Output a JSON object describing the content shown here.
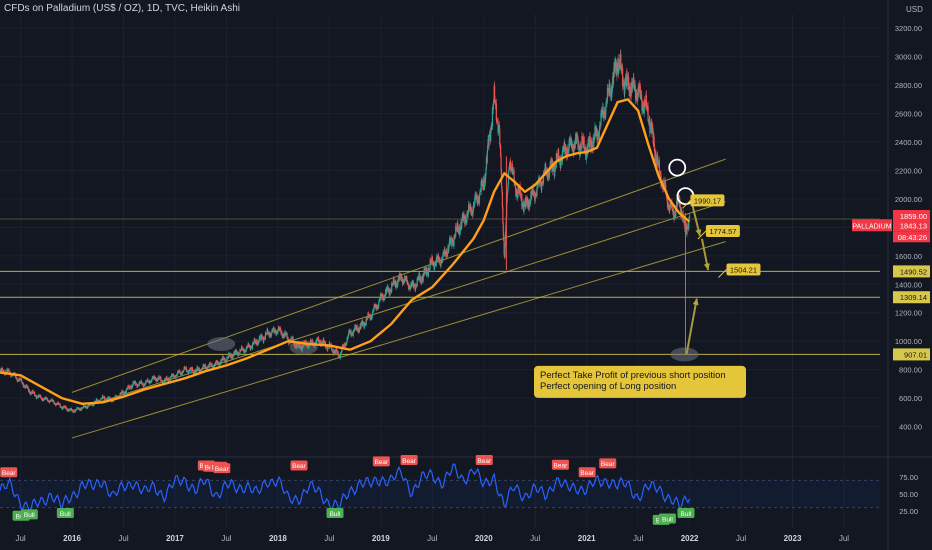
{
  "header": {
    "title": "CFDs on Palladium (US$ / OZ), 1D, TVC, Heikin Ashi",
    "currency": "USD"
  },
  "colors": {
    "background": "#131722",
    "candle_up": "#26a69a",
    "candle_down": "#ef5350",
    "ma_line": "#ff9f1a",
    "channel": "#c8b43c",
    "hline": "#d8c84a",
    "rsi_line": "#2962ff",
    "annotation_bg": "#e5c53a",
    "price_tag": "#f23645"
  },
  "chart_data": [
    {
      "type": "line",
      "name": "price-chart",
      "title": "CFDs on Palladium (US$ / OZ), 1D, TVC, Heikin Ashi",
      "xlabel": "",
      "ylabel": "USD",
      "ylim": [
        200,
        3300
      ],
      "x_range": [
        2015.3,
        2023.85
      ],
      "x_ticks": [
        {
          "x": 2015.5,
          "label": "Jul"
        },
        {
          "x": 2016.0,
          "label": "2016"
        },
        {
          "x": 2016.5,
          "label": "Jul"
        },
        {
          "x": 2017.0,
          "label": "2017"
        },
        {
          "x": 2017.5,
          "label": "Jul"
        },
        {
          "x": 2018.0,
          "label": "2018"
        },
        {
          "x": 2018.5,
          "label": "Jul"
        },
        {
          "x": 2019.0,
          "label": "2019"
        },
        {
          "x": 2019.5,
          "label": "Jul"
        },
        {
          "x": 2020.0,
          "label": "2020"
        },
        {
          "x": 2020.5,
          "label": "Jul"
        },
        {
          "x": 2021.0,
          "label": "2021"
        },
        {
          "x": 2021.5,
          "label": "Jul"
        },
        {
          "x": 2022.0,
          "label": "2022"
        },
        {
          "x": 2022.5,
          "label": "Jul"
        },
        {
          "x": 2023.0,
          "label": "2023"
        },
        {
          "x": 2023.5,
          "label": "Jul"
        }
      ],
      "y_ticks": [
        400,
        600,
        800,
        1000,
        1200,
        1400,
        1600,
        1800,
        2000,
        2200,
        2400,
        2600,
        2800,
        3000,
        3200
      ],
      "y_tick_labels": [
        "400.00",
        "600.00",
        "800.00",
        "1000.00",
        "1200.00",
        "1400.00",
        "1600.00",
        "1800.00",
        "2000.00",
        "2200.00",
        "2400.00",
        "2600.00",
        "2800.00",
        "3000.00",
        "3200.00"
      ],
      "series": [
        {
          "name": "price",
          "x": [
            2015.3,
            2015.4,
            2015.5,
            2015.6,
            2015.7,
            2015.8,
            2015.9,
            2016.0,
            2016.1,
            2016.2,
            2016.3,
            2016.4,
            2016.5,
            2016.6,
            2016.7,
            2016.8,
            2016.9,
            2017.0,
            2017.1,
            2017.2,
            2017.3,
            2017.4,
            2017.5,
            2017.6,
            2017.7,
            2017.8,
            2017.9,
            2018.0,
            2018.1,
            2018.2,
            2018.3,
            2018.4,
            2018.5,
            2018.6,
            2018.7,
            2018.8,
            2018.9,
            2019.0,
            2019.1,
            2019.2,
            2019.3,
            2019.4,
            2019.5,
            2019.6,
            2019.7,
            2019.8,
            2019.9,
            2020.0,
            2020.05,
            2020.1,
            2020.15,
            2020.2,
            2020.25,
            2020.3,
            2020.4,
            2020.5,
            2020.6,
            2020.7,
            2020.8,
            2020.9,
            2021.0,
            2021.1,
            2021.2,
            2021.25,
            2021.3,
            2021.35,
            2021.4,
            2021.5,
            2021.6,
            2021.7,
            2021.75,
            2021.8,
            2021.85,
            2021.9,
            2021.95,
            2022.0
          ],
          "values": [
            790,
            780,
            720,
            640,
            600,
            580,
            540,
            510,
            530,
            560,
            600,
            590,
            640,
            700,
            700,
            740,
            720,
            760,
            800,
            790,
            820,
            840,
            880,
            920,
            950,
            1000,
            1050,
            1080,
            1020,
            960,
            980,
            1000,
            960,
            900,
            1060,
            1100,
            1180,
            1300,
            1380,
            1450,
            1380,
            1450,
            1550,
            1580,
            1720,
            1850,
            1950,
            2100,
            2400,
            2700,
            2500,
            1600,
            2300,
            2100,
            1950,
            2050,
            2180,
            2250,
            2350,
            2400,
            2350,
            2450,
            2700,
            2820,
            2980,
            2850,
            2800,
            2750,
            2600,
            2200,
            2100,
            1950,
            1900,
            2000,
            1790,
            1850
          ]
        },
        {
          "name": "moving-average",
          "x": [
            2015.3,
            2015.5,
            2015.7,
            2015.9,
            2016.1,
            2016.3,
            2016.5,
            2016.7,
            2016.9,
            2017.1,
            2017.3,
            2017.5,
            2017.7,
            2017.9,
            2018.1,
            2018.3,
            2018.5,
            2018.7,
            2018.9,
            2019.1,
            2019.3,
            2019.5,
            2019.7,
            2019.9,
            2020.0,
            2020.1,
            2020.2,
            2020.3,
            2020.4,
            2020.5,
            2020.6,
            2020.7,
            2020.8,
            2020.9,
            2021.0,
            2021.1,
            2021.2,
            2021.3,
            2021.4,
            2021.5,
            2021.6,
            2021.7,
            2021.8,
            2021.9,
            2022.0
          ],
          "values": [
            780,
            760,
            680,
            600,
            560,
            570,
            610,
            660,
            700,
            740,
            790,
            830,
            880,
            940,
            1000,
            980,
            970,
            940,
            1000,
            1120,
            1290,
            1380,
            1540,
            1720,
            1850,
            2050,
            2180,
            2120,
            2050,
            2100,
            2180,
            2260,
            2300,
            2320,
            2330,
            2360,
            2520,
            2680,
            2700,
            2620,
            2380,
            2160,
            2000,
            1900,
            1840
          ]
        }
      ],
      "horizontal_levels": [
        1859.0,
        1490.52,
        1309.14,
        907.01
      ],
      "price_labels": [
        {
          "value": 1859.0,
          "label": "1859.00"
        },
        {
          "value": 1843.13,
          "label": "1843.13"
        },
        {
          "value": 1490.52,
          "label": "1490.52"
        },
        {
          "value": 1309.14,
          "label": "1309.14"
        },
        {
          "value": 907.01,
          "label": "907.01"
        }
      ],
      "current_price": {
        "symbol": "PALLADIUM",
        "value": "1843.13",
        "countdown": "08:43:26"
      },
      "channel_lines": [
        {
          "x": [
            2016.0,
            2022.35
          ],
          "y": [
            640,
            2280
          ]
        },
        {
          "x": [
            2016.0,
            2022.35
          ],
          "y": [
            510,
            1980
          ]
        },
        {
          "x": [
            2016.0,
            2022.35
          ],
          "y": [
            320,
            1700
          ]
        }
      ],
      "annotations": [
        {
          "label": "1990.17",
          "x": 2021.95,
          "y": 1990.17
        },
        {
          "label": "1774.57",
          "x": 2022.1,
          "y": 1774.57
        },
        {
          "label": "1504.21",
          "x": 2022.3,
          "y": 1504.21
        }
      ],
      "callout": {
        "lines": [
          "Perfect Take Profit of previous short position",
          "Perfect opening of Long position"
        ],
        "x": 2021.8,
        "y": 700
      },
      "marked_zones": [
        {
          "x": 2017.45,
          "y": 980
        },
        {
          "x": 2018.25,
          "y": 955
        },
        {
          "x": 2021.95,
          "y": 907
        }
      ],
      "circles": [
        {
          "x": 2021.88,
          "y": 2220
        },
        {
          "x": 2021.96,
          "y": 2020
        }
      ]
    },
    {
      "type": "line",
      "name": "rsi-indicator",
      "title": "",
      "ylim": [
        0,
        100
      ],
      "y_ticks": [
        25,
        50,
        75
      ],
      "y_tick_labels": [
        "25.00",
        "50.00",
        "75.00"
      ],
      "band": [
        30,
        70
      ],
      "series": [
        {
          "name": "rsi",
          "x": [
            2015.3,
            2015.4,
            2015.5,
            2015.6,
            2015.7,
            2015.8,
            2015.9,
            2016.0,
            2016.1,
            2016.2,
            2016.3,
            2016.4,
            2016.5,
            2016.6,
            2016.7,
            2016.8,
            2016.9,
            2017.0,
            2017.1,
            2017.2,
            2017.3,
            2017.4,
            2017.5,
            2017.6,
            2017.7,
            2017.8,
            2017.9,
            2018.0,
            2018.1,
            2018.2,
            2018.3,
            2018.4,
            2018.5,
            2018.6,
            2018.7,
            2018.8,
            2018.9,
            2019.0,
            2019.1,
            2019.2,
            2019.3,
            2019.4,
            2019.5,
            2019.6,
            2019.7,
            2019.8,
            2019.9,
            2020.0,
            2020.1,
            2020.2,
            2020.3,
            2020.4,
            2020.5,
            2020.6,
            2020.7,
            2020.8,
            2020.9,
            2021.0,
            2021.1,
            2021.2,
            2021.3,
            2021.4,
            2021.5,
            2021.6,
            2021.7,
            2021.8,
            2021.9,
            2022.0
          ],
          "values": [
            55,
            62,
            40,
            28,
            38,
            52,
            30,
            48,
            65,
            58,
            72,
            45,
            60,
            70,
            50,
            62,
            48,
            66,
            72,
            55,
            68,
            50,
            62,
            58,
            65,
            48,
            70,
            72,
            40,
            45,
            60,
            52,
            38,
            30,
            55,
            68,
            62,
            74,
            70,
            80,
            55,
            72,
            78,
            68,
            85,
            72,
            88,
            60,
            78,
            30,
            62,
            48,
            55,
            50,
            70,
            58,
            62,
            55,
            68,
            72,
            60,
            66,
            45,
            58,
            62,
            42,
            30,
            52
          ]
        }
      ],
      "signals": [
        {
          "label": "Bear",
          "x": 2015.38,
          "y": 82
        },
        {
          "label": "Bull",
          "x": 2015.5,
          "y": 18
        },
        {
          "label": "Bull",
          "x": 2015.58,
          "y": 20
        },
        {
          "label": "Bull",
          "x": 2015.93,
          "y": 22
        },
        {
          "label": "Bear",
          "x": 2017.3,
          "y": 92
        },
        {
          "label": "Bear",
          "x": 2017.35,
          "y": 90
        },
        {
          "label": "Bear",
          "x": 2017.42,
          "y": 90
        },
        {
          "label": "Bear",
          "x": 2017.45,
          "y": 88
        },
        {
          "label": "Bear",
          "x": 2018.2,
          "y": 92
        },
        {
          "label": "Bull",
          "x": 2018.55,
          "y": 22
        },
        {
          "label": "Bear",
          "x": 2019.0,
          "y": 98
        },
        {
          "label": "Bear",
          "x": 2019.27,
          "y": 100
        },
        {
          "label": "Bear",
          "x": 2020.0,
          "y": 102
        },
        {
          "label": "Bear",
          "x": 2020.74,
          "y": 93
        },
        {
          "label": "Bear",
          "x": 2021.0,
          "y": 82
        },
        {
          "label": "Bear",
          "x": 2021.2,
          "y": 95
        },
        {
          "label": "Bull",
          "x": 2021.72,
          "y": 12
        },
        {
          "label": "Bull",
          "x": 2021.78,
          "y": 14
        },
        {
          "label": "Bull",
          "x": 2021.96,
          "y": 22
        }
      ]
    }
  ]
}
